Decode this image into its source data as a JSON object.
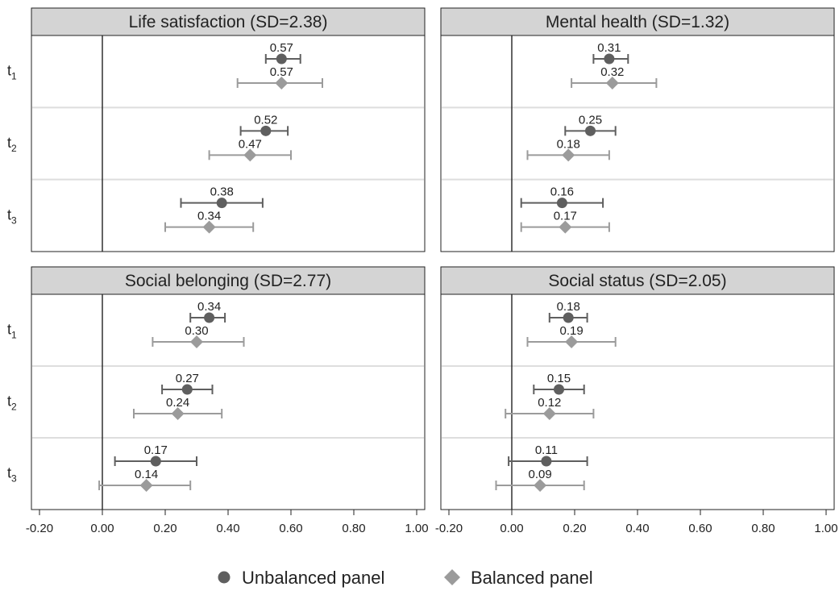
{
  "colors": {
    "unbalanced": "#5f5f5f",
    "balanced": "#9b9b9b",
    "header_fill": "#d4d4d4",
    "separator": "#dedede"
  },
  "legend": {
    "unbalanced": "Unbalanced panel",
    "balanced": "Balanced panel",
    "unbalanced_marker": "circle",
    "balanced_marker": "diamond"
  },
  "chart_data": [
    {
      "type": "scatter",
      "title": "Life satisfaction (SD=2.38)",
      "categories": [
        {
          "main": "t",
          "sub": "1"
        },
        {
          "main": "t",
          "sub": "2"
        },
        {
          "main": "t",
          "sub": "3"
        }
      ],
      "xlim": [
        -0.2,
        1.0
      ],
      "xticks": [
        "-0.20",
        "0.00",
        "0.20",
        "0.40",
        "0.60",
        "0.80",
        "1.00"
      ],
      "series": [
        {
          "name": "Unbalanced panel",
          "values": [
            0.57,
            0.52,
            0.38
          ],
          "labels": [
            "0.57",
            "0.52",
            "0.38"
          ],
          "ci_low": [
            0.52,
            0.44,
            0.25
          ],
          "ci_high": [
            0.63,
            0.59,
            0.51
          ]
        },
        {
          "name": "Balanced panel",
          "values": [
            0.57,
            0.47,
            0.34
          ],
          "labels": [
            "0.57",
            "0.47",
            "0.34"
          ],
          "ci_low": [
            0.43,
            0.34,
            0.2
          ],
          "ci_high": [
            0.7,
            0.6,
            0.48
          ]
        }
      ]
    },
    {
      "type": "scatter",
      "title": "Mental health (SD=1.32)",
      "categories": [
        {
          "main": "t",
          "sub": "1"
        },
        {
          "main": "t",
          "sub": "2"
        },
        {
          "main": "t",
          "sub": "3"
        }
      ],
      "xlim": [
        -0.2,
        1.0
      ],
      "xticks": [
        "-0.20",
        "0.00",
        "0.20",
        "0.40",
        "0.60",
        "0.80",
        "1.00"
      ],
      "series": [
        {
          "name": "Unbalanced panel",
          "values": [
            0.31,
            0.25,
            0.16
          ],
          "labels": [
            "0.31",
            "0.25",
            "0.16"
          ],
          "ci_low": [
            0.26,
            0.17,
            0.03
          ],
          "ci_high": [
            0.37,
            0.33,
            0.29
          ]
        },
        {
          "name": "Balanced panel",
          "values": [
            0.32,
            0.18,
            0.17
          ],
          "labels": [
            "0.32",
            "0.18",
            "0.17"
          ],
          "ci_low": [
            0.19,
            0.05,
            0.03
          ],
          "ci_high": [
            0.46,
            0.31,
            0.31
          ]
        }
      ]
    },
    {
      "type": "scatter",
      "title": "Social belonging (SD=2.77)",
      "categories": [
        {
          "main": "t",
          "sub": "1"
        },
        {
          "main": "t",
          "sub": "2"
        },
        {
          "main": "t",
          "sub": "3"
        }
      ],
      "xlim": [
        -0.2,
        1.0
      ],
      "xticks": [
        "-0.20",
        "0.00",
        "0.20",
        "0.40",
        "0.60",
        "0.80",
        "1.00"
      ],
      "series": [
        {
          "name": "Unbalanced panel",
          "values": [
            0.34,
            0.27,
            0.17
          ],
          "labels": [
            "0.34",
            "0.27",
            "0.17"
          ],
          "ci_low": [
            0.28,
            0.19,
            0.04
          ],
          "ci_high": [
            0.39,
            0.35,
            0.3
          ]
        },
        {
          "name": "Balanced panel",
          "values": [
            0.3,
            0.24,
            0.14
          ],
          "labels": [
            "0.30",
            "0.24",
            "0.14"
          ],
          "ci_low": [
            0.16,
            0.1,
            -0.01
          ],
          "ci_high": [
            0.45,
            0.38,
            0.28
          ]
        }
      ]
    },
    {
      "type": "scatter",
      "title": "Social status (SD=2.05)",
      "categories": [
        {
          "main": "t",
          "sub": "1"
        },
        {
          "main": "t",
          "sub": "2"
        },
        {
          "main": "t",
          "sub": "3"
        }
      ],
      "xlim": [
        -0.2,
        1.0
      ],
      "xticks": [
        "-0.20",
        "0.00",
        "0.20",
        "0.40",
        "0.60",
        "0.80",
        "1.00"
      ],
      "series": [
        {
          "name": "Unbalanced panel",
          "values": [
            0.18,
            0.15,
            0.11
          ],
          "labels": [
            "0.18",
            "0.15",
            "0.11"
          ],
          "ci_low": [
            0.12,
            0.07,
            -0.01
          ],
          "ci_high": [
            0.24,
            0.23,
            0.24
          ]
        },
        {
          "name": "Balanced panel",
          "values": [
            0.19,
            0.12,
            0.09
          ],
          "labels": [
            "0.19",
            "0.12",
            "0.09"
          ],
          "ci_low": [
            0.05,
            -0.02,
            -0.05
          ],
          "ci_high": [
            0.33,
            0.26,
            0.23
          ]
        }
      ]
    }
  ]
}
